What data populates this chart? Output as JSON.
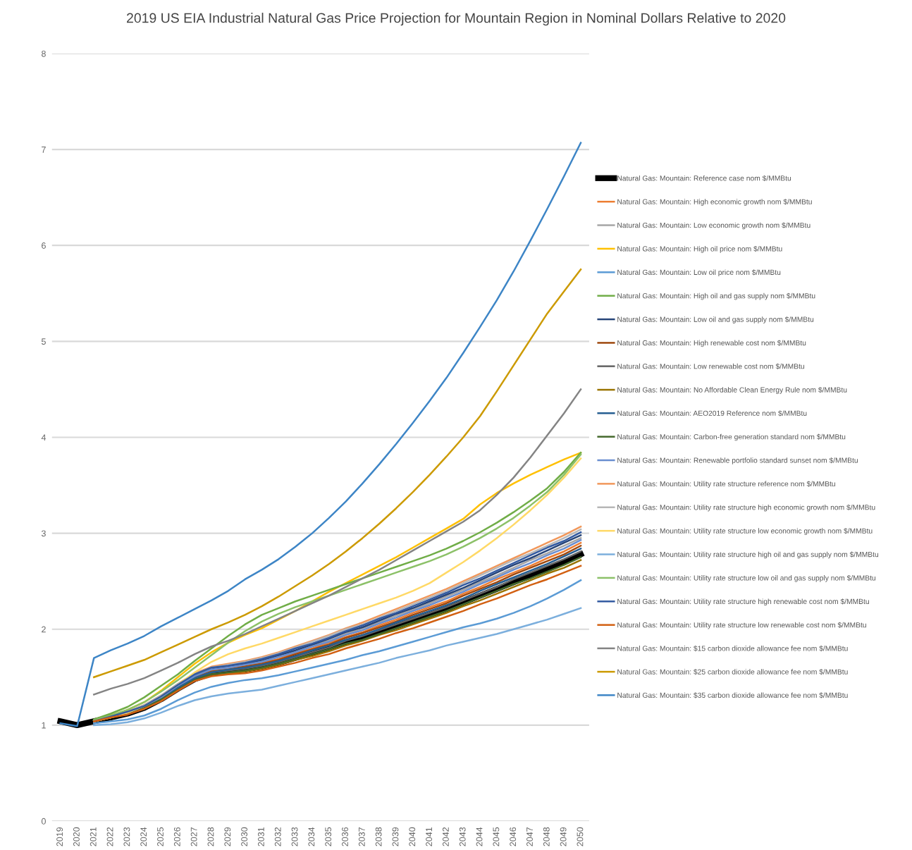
{
  "chart_data": {
    "type": "line",
    "title": "2019 US EIA Industrial Natural Gas Price Projection for Mountain Region in Nominal Dollars Relative to 2020",
    "categories": [
      "2019",
      "2020",
      "2021",
      "2022",
      "2023",
      "2024",
      "2025",
      "2026",
      "2027",
      "2028",
      "2029",
      "2030",
      "2031",
      "2032",
      "2033",
      "2034",
      "2035",
      "2036",
      "2037",
      "2038",
      "2039",
      "2040",
      "2041",
      "2042",
      "2043",
      "2044",
      "2045",
      "2046",
      "2047",
      "2048",
      "2049",
      "2050"
    ],
    "ylim": [
      0,
      8
    ],
    "yticks": [
      0,
      1,
      2,
      3,
      4,
      5,
      6,
      7,
      8
    ],
    "grid": "y",
    "legend": "right",
    "marker": "none",
    "line_style": "solid",
    "series": [
      {
        "name": "Natural Gas: Mountain: Reference case nom $/MMBtu",
        "color": "#000000",
        "values": [
          1.04,
          1.0,
          1.04,
          1.08,
          1.12,
          1.18,
          1.27,
          1.38,
          1.48,
          1.54,
          1.56,
          1.58,
          1.61,
          1.65,
          1.7,
          1.75,
          1.8,
          1.86,
          1.91,
          1.97,
          2.03,
          2.09,
          2.15,
          2.21,
          2.28,
          2.35,
          2.42,
          2.49,
          2.56,
          2.63,
          2.7,
          2.78
        ]
      },
      {
        "name": "Natural Gas: Mountain: High economic growth nom $/MMBtu",
        "color": "#ed7d31",
        "values": [
          null,
          null,
          1.04,
          1.08,
          1.13,
          1.19,
          1.29,
          1.4,
          1.5,
          1.57,
          1.59,
          1.62,
          1.65,
          1.69,
          1.75,
          1.8,
          1.86,
          1.92,
          1.97,
          2.04,
          2.1,
          2.17,
          2.23,
          2.29,
          2.37,
          2.44,
          2.52,
          2.59,
          2.66,
          2.74,
          2.81,
          2.9
        ]
      },
      {
        "name": "Natural Gas: Mountain: Low economic growth nom $/MMBtu",
        "color": "#a5a5a5",
        "values": [
          null,
          null,
          1.04,
          1.09,
          1.13,
          1.2,
          1.29,
          1.41,
          1.52,
          1.58,
          1.61,
          1.63,
          1.67,
          1.72,
          1.77,
          1.83,
          1.88,
          1.95,
          2.01,
          2.07,
          2.14,
          2.2,
          2.27,
          2.34,
          2.41,
          2.49,
          2.56,
          2.64,
          2.72,
          2.79,
          2.87,
          2.95
        ]
      },
      {
        "name": "Natural Gas: Mountain: High oil price nom $/MMBtu",
        "color": "#ffc000",
        "values": [
          null,
          null,
          1.05,
          1.1,
          1.16,
          1.24,
          1.36,
          1.5,
          1.64,
          1.76,
          1.86,
          1.94,
          2.01,
          2.1,
          2.19,
          2.29,
          2.39,
          2.48,
          2.57,
          2.66,
          2.75,
          2.85,
          2.95,
          3.05,
          3.15,
          3.3,
          3.42,
          3.52,
          3.61,
          3.69,
          3.77,
          3.84
        ]
      },
      {
        "name": "Natural Gas: Mountain: Low oil price nom $/MMBtu",
        "color": "#5b9bd5",
        "values": [
          null,
          null,
          1.02,
          1.04,
          1.06,
          1.1,
          1.17,
          1.26,
          1.34,
          1.4,
          1.44,
          1.47,
          1.49,
          1.52,
          1.56,
          1.6,
          1.64,
          1.68,
          1.73,
          1.77,
          1.82,
          1.87,
          1.92,
          1.97,
          2.02,
          2.06,
          2.11,
          2.17,
          2.24,
          2.32,
          2.41,
          2.51
        ]
      },
      {
        "name": "Natural Gas: Mountain: High oil and gas supply nom $/MMBtu",
        "color": "#70ad47",
        "values": [
          null,
          null,
          1.06,
          1.12,
          1.19,
          1.29,
          1.41,
          1.53,
          1.67,
          1.8,
          1.93,
          2.05,
          2.15,
          2.22,
          2.29,
          2.35,
          2.41,
          2.47,
          2.53,
          2.59,
          2.65,
          2.71,
          2.77,
          2.84,
          2.92,
          3.01,
          3.11,
          3.22,
          3.34,
          3.47,
          3.64,
          3.84
        ]
      },
      {
        "name": "Natural Gas: Mountain: Low oil and gas supply nom $/MMBtu",
        "color": "#264478",
        "values": [
          null,
          null,
          1.04,
          1.09,
          1.13,
          1.2,
          1.3,
          1.42,
          1.52,
          1.59,
          1.62,
          1.64,
          1.68,
          1.73,
          1.78,
          1.84,
          1.9,
          1.97,
          2.02,
          2.09,
          2.16,
          2.22,
          2.29,
          2.36,
          2.43,
          2.51,
          2.59,
          2.67,
          2.74,
          2.82,
          2.9,
          2.98
        ]
      },
      {
        "name": "Natural Gas: Mountain: High renewable cost nom $/MMBtu",
        "color": "#9e480e",
        "values": [
          null,
          null,
          1.04,
          1.08,
          1.13,
          1.19,
          1.28,
          1.4,
          1.5,
          1.56,
          1.58,
          1.61,
          1.64,
          1.68,
          1.74,
          1.79,
          1.84,
          1.91,
          1.96,
          2.02,
          2.08,
          2.15,
          2.21,
          2.27,
          2.35,
          2.42,
          2.49,
          2.57,
          2.64,
          2.71,
          2.78,
          2.87
        ]
      },
      {
        "name": "Natural Gas: Mountain: Low renewable cost nom $/MMBtu",
        "color": "#636363",
        "values": [
          null,
          null,
          1.04,
          1.08,
          1.12,
          1.18,
          1.27,
          1.39,
          1.49,
          1.55,
          1.57,
          1.59,
          1.62,
          1.66,
          1.71,
          1.76,
          1.81,
          1.88,
          1.93,
          1.99,
          2.05,
          2.11,
          2.17,
          2.23,
          2.3,
          2.37,
          2.44,
          2.52,
          2.59,
          2.66,
          2.73,
          2.81
        ]
      },
      {
        "name": "Natural Gas: Mountain: No Affordable Clean Energy Rule nom $/MMBtu",
        "color": "#997300",
        "values": [
          null,
          null,
          1.04,
          1.08,
          1.12,
          1.17,
          1.26,
          1.37,
          1.47,
          1.53,
          1.54,
          1.56,
          1.59,
          1.63,
          1.68,
          1.72,
          1.77,
          1.83,
          1.88,
          1.94,
          1.99,
          2.05,
          2.11,
          2.17,
          2.24,
          2.3,
          2.37,
          2.44,
          2.51,
          2.58,
          2.64,
          2.72
        ]
      },
      {
        "name": "Natural Gas: Mountain: AEO2019 Reference nom $/MMBtu",
        "color": "#255e91",
        "values": [
          null,
          null,
          1.04,
          1.08,
          1.12,
          1.19,
          1.28,
          1.39,
          1.49,
          1.55,
          1.58,
          1.6,
          1.63,
          1.67,
          1.72,
          1.78,
          1.83,
          1.89,
          1.94,
          2.0,
          2.07,
          2.13,
          2.19,
          2.25,
          2.32,
          2.4,
          2.47,
          2.54,
          2.61,
          2.68,
          2.76,
          2.84
        ]
      },
      {
        "name": "Natural Gas: Mountain: Carbon-free generation standard nom $/MMBtu",
        "color": "#43682b",
        "values": [
          null,
          null,
          1.04,
          1.08,
          1.12,
          1.18,
          1.27,
          1.37,
          1.47,
          1.53,
          1.55,
          1.57,
          1.6,
          1.64,
          1.69,
          1.74,
          1.79,
          1.85,
          1.89,
          1.95,
          2.01,
          2.07,
          2.13,
          2.19,
          2.26,
          2.33,
          2.4,
          2.47,
          2.53,
          2.6,
          2.67,
          2.75
        ]
      },
      {
        "name": "Natural Gas: Mountain: Renewable portfolio standard sunset nom $/MMBtu",
        "color": "#698ed0",
        "values": [
          null,
          null,
          1.04,
          1.09,
          1.13,
          1.2,
          1.29,
          1.41,
          1.51,
          1.58,
          1.6,
          1.63,
          1.66,
          1.71,
          1.76,
          1.82,
          1.87,
          1.94,
          1.99,
          2.06,
          2.12,
          2.19,
          2.25,
          2.32,
          2.39,
          2.47,
          2.54,
          2.62,
          2.69,
          2.77,
          2.84,
          2.93
        ]
      },
      {
        "name": "Natural Gas: Mountain: Utility rate structure reference nom $/MMBtu",
        "color": "#f1975a",
        "values": [
          null,
          null,
          1.04,
          1.09,
          1.14,
          1.21,
          1.31,
          1.43,
          1.54,
          1.61,
          1.64,
          1.67,
          1.71,
          1.76,
          1.82,
          1.88,
          1.94,
          2.01,
          2.07,
          2.14,
          2.21,
          2.28,
          2.35,
          2.42,
          2.5,
          2.58,
          2.66,
          2.74,
          2.82,
          2.9,
          2.98,
          3.07
        ]
      },
      {
        "name": "Natural Gas: Mountain: Utility rate structure high economic growth nom $/MMBtu",
        "color": "#b7b7b7",
        "values": [
          null,
          null,
          1.04,
          1.09,
          1.14,
          1.21,
          1.31,
          1.43,
          1.53,
          1.6,
          1.63,
          1.66,
          1.7,
          1.75,
          1.81,
          1.87,
          1.93,
          2.0,
          2.05,
          2.12,
          2.19,
          2.26,
          2.33,
          2.4,
          2.48,
          2.56,
          2.64,
          2.72,
          2.79,
          2.87,
          2.95,
          3.04
        ]
      },
      {
        "name": "Natural Gas: Mountain: Utility rate structure low economic growth nom $/MMBtu",
        "color": "#ffd966",
        "values": [
          null,
          null,
          1.04,
          1.08,
          1.13,
          1.2,
          1.3,
          1.42,
          1.55,
          1.66,
          1.74,
          1.8,
          1.85,
          1.91,
          1.97,
          2.03,
          2.09,
          2.15,
          2.21,
          2.27,
          2.33,
          2.4,
          2.48,
          2.59,
          2.7,
          2.82,
          2.95,
          3.09,
          3.24,
          3.4,
          3.58,
          3.78
        ]
      },
      {
        "name": "Natural Gas: Mountain: Utility rate structure high oil and gas supply nom $/MMBtu",
        "color": "#7cafdd",
        "values": [
          null,
          null,
          1.0,
          1.01,
          1.03,
          1.07,
          1.13,
          1.2,
          1.26,
          1.3,
          1.33,
          1.35,
          1.37,
          1.41,
          1.45,
          1.49,
          1.53,
          1.57,
          1.61,
          1.65,
          1.7,
          1.74,
          1.78,
          1.83,
          1.87,
          1.91,
          1.95,
          2.0,
          2.05,
          2.1,
          2.16,
          2.22
        ]
      },
      {
        "name": "Natural Gas: Mountain: Utility rate structure low oil and gas supply nom $/MMBtu",
        "color": "#8cc168",
        "values": [
          null,
          null,
          1.05,
          1.1,
          1.16,
          1.24,
          1.35,
          1.47,
          1.6,
          1.73,
          1.86,
          1.98,
          2.08,
          2.16,
          2.23,
          2.29,
          2.35,
          2.41,
          2.47,
          2.53,
          2.59,
          2.65,
          2.71,
          2.78,
          2.86,
          2.95,
          3.05,
          3.16,
          3.29,
          3.43,
          3.61,
          3.82
        ]
      },
      {
        "name": "Natural Gas: Mountain: Utility rate structure high renewable cost nom $/MMBtu",
        "color": "#335aa1",
        "values": [
          null,
          null,
          1.04,
          1.09,
          1.14,
          1.2,
          1.3,
          1.42,
          1.53,
          1.6,
          1.62,
          1.65,
          1.69,
          1.74,
          1.8,
          1.85,
          1.91,
          1.98,
          2.04,
          2.11,
          2.17,
          2.24,
          2.31,
          2.38,
          2.46,
          2.53,
          2.61,
          2.69,
          2.77,
          2.85,
          2.92,
          3.01
        ]
      },
      {
        "name": "Natural Gas: Mountain: Utility rate structure low renewable cost nom $/MMBtu",
        "color": "#d26012",
        "values": [
          null,
          null,
          1.04,
          1.08,
          1.11,
          1.17,
          1.25,
          1.36,
          1.46,
          1.51,
          1.53,
          1.54,
          1.57,
          1.61,
          1.65,
          1.7,
          1.74,
          1.8,
          1.85,
          1.9,
          1.96,
          2.01,
          2.07,
          2.13,
          2.19,
          2.26,
          2.32,
          2.39,
          2.46,
          2.52,
          2.59,
          2.66
        ]
      },
      {
        "name": "Natural Gas: Mountain: $15 carbon dioxide allowance fee nom $/MMBtu",
        "color": "#848484",
        "values": [
          null,
          null,
          1.32,
          1.38,
          1.43,
          1.49,
          1.57,
          1.65,
          1.74,
          1.82,
          1.88,
          1.95,
          2.03,
          2.11,
          2.19,
          2.27,
          2.35,
          2.44,
          2.53,
          2.62,
          2.72,
          2.82,
          2.92,
          3.02,
          3.12,
          3.24,
          3.4,
          3.58,
          3.79,
          4.02,
          4.25,
          4.5
        ]
      },
      {
        "name": "Natural Gas: Mountain: $25 carbon dioxide allowance fee nom $/MMBtu",
        "color": "#cc9a00",
        "values": [
          null,
          null,
          1.5,
          1.56,
          1.62,
          1.68,
          1.76,
          1.84,
          1.92,
          2.0,
          2.07,
          2.15,
          2.24,
          2.34,
          2.45,
          2.56,
          2.68,
          2.81,
          2.95,
          3.1,
          3.26,
          3.43,
          3.61,
          3.8,
          4.0,
          4.22,
          4.48,
          4.75,
          5.02,
          5.29,
          5.52,
          5.75
        ]
      },
      {
        "name": "Natural Gas: Mountain: $35 carbon dioxide allowance fee nom $/MMBtu",
        "color": "#3d85c6",
        "values": [
          1.02,
          0.99,
          1.7,
          1.78,
          1.85,
          1.93,
          2.03,
          2.12,
          2.21,
          2.3,
          2.4,
          2.52,
          2.62,
          2.73,
          2.86,
          3.0,
          3.16,
          3.33,
          3.52,
          3.72,
          3.93,
          4.15,
          4.38,
          4.62,
          4.88,
          5.15,
          5.43,
          5.73,
          6.05,
          6.38,
          6.72,
          7.07
        ]
      }
    ]
  }
}
